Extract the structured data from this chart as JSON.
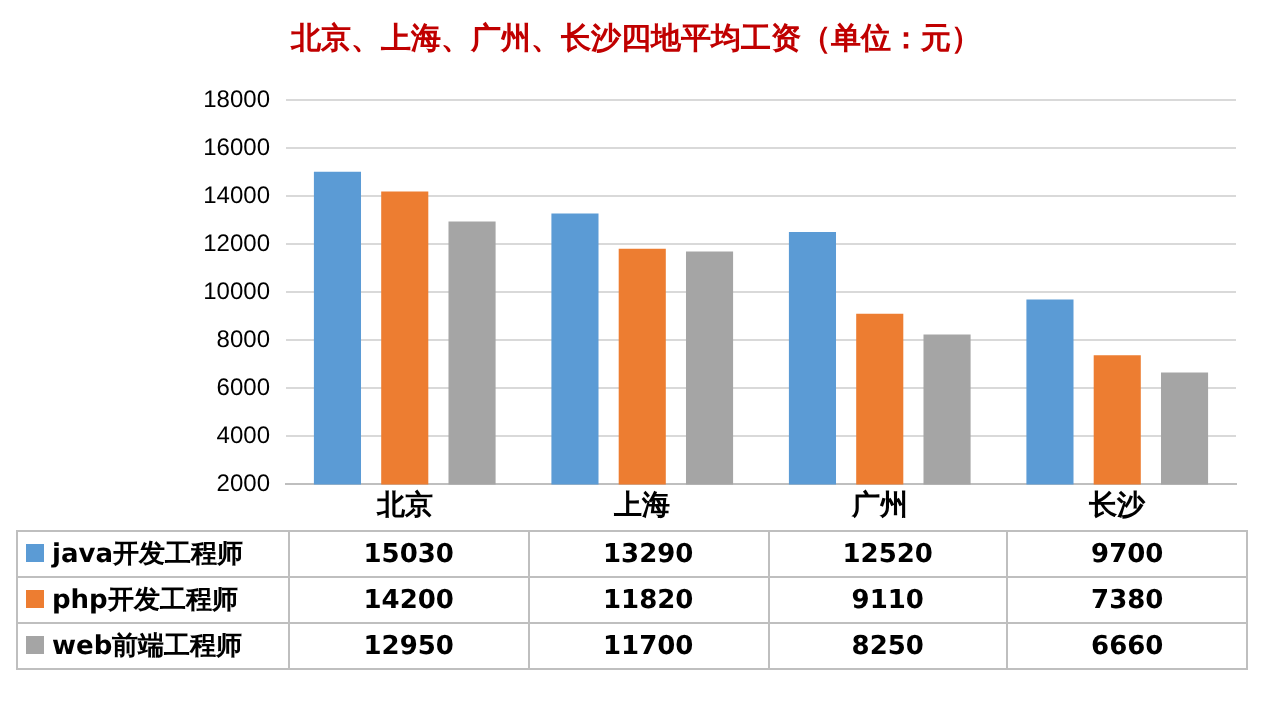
{
  "chart_data": {
    "type": "bar",
    "title": "北京、上海、广州、长沙四地平均工资（单位：元）",
    "categories": [
      "北京",
      "上海",
      "广州",
      "长沙"
    ],
    "series": [
      {
        "name": "java开发工程师",
        "color": "#5b9bd5",
        "values": [
          15030,
          13290,
          12520,
          9700
        ]
      },
      {
        "name": "php开发工程师",
        "color": "#ed7d31",
        "values": [
          14200,
          11820,
          9110,
          7380
        ]
      },
      {
        "name": "web前端工程师",
        "color": "#a5a5a5",
        "values": [
          12950,
          11700,
          8250,
          6660
        ]
      }
    ],
    "ylim": [
      2000,
      18000
    ],
    "yticks": [
      2000,
      4000,
      6000,
      8000,
      10000,
      12000,
      14000,
      16000,
      18000
    ],
    "grid": "y",
    "legend": "bottom",
    "data_labels": true
  }
}
